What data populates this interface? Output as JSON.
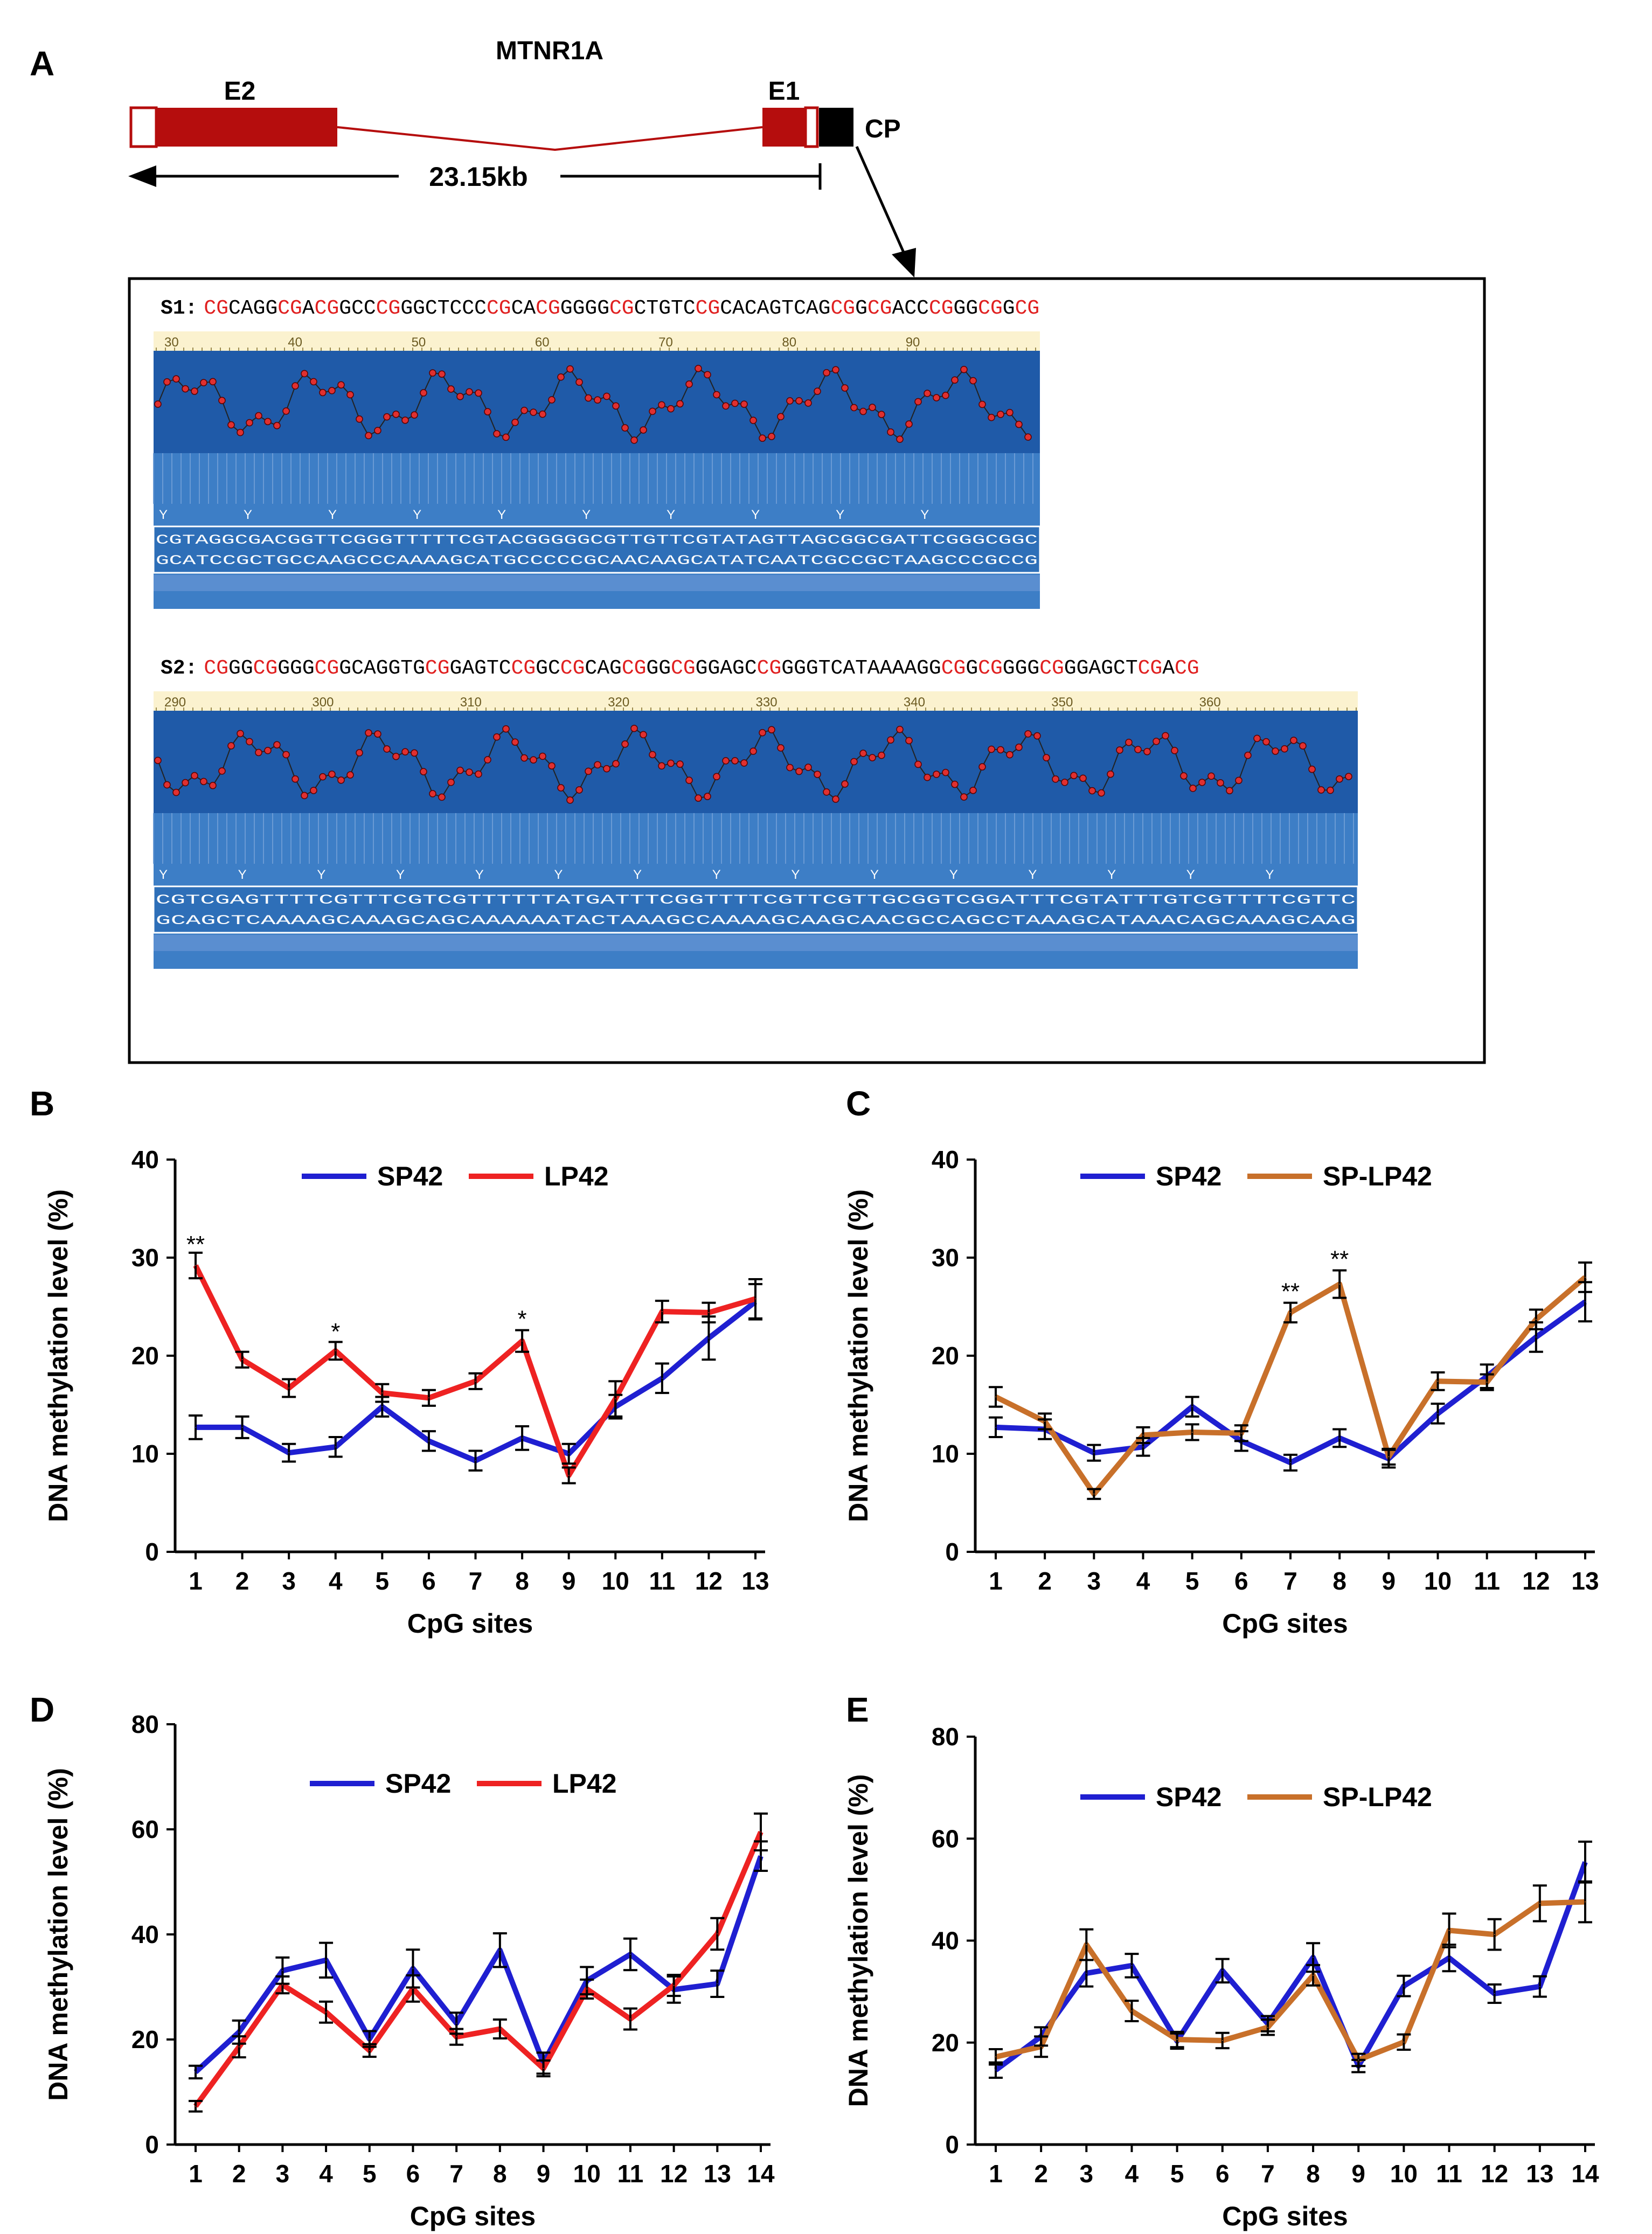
{
  "panel_a": {
    "label": "A",
    "gene": "MTNR1A",
    "exon2": "E2",
    "exon1": "E1",
    "promoter": "CP",
    "distance": "23.15kb",
    "s1_prefix": "S1:",
    "s1_sequence": "CGCAGGCGACGGCCCGGGCTCCCCGCACGGGGGCGCTGTCCGCACAGTCAGCGGCGACCCGGGCGGCG",
    "s1_ruler": [
      "30",
      "40",
      "50",
      "60",
      "70",
      "80",
      "90"
    ],
    "s1_bisulfite_top": "CGTAGGCGACGGTTCGGGTTTTTCGTACGGGGGCGTTGTTCGTATAGTTAGCGGCGATTCGGGCGGC",
    "s1_bisulfite_bottom": "GCATCCGCTGCCAAGCCCAAAAGCATGCCCCCGCAACAAGCATATCAATCGCCGCTAAGCCCGCCG",
    "s1_y_marks": [
      "Y",
      "Y",
      "Y",
      "Y",
      "Y",
      "Y",
      "Y",
      "Y",
      "Y",
      "Y"
    ],
    "s2_prefix": "S2:",
    "s2_sequence": "CGGGCGGGGCGGCAGGTGCGGAGTCCGGCCGCAGCGGGCGGGAGCCGGGGTCATAAAAGGCGGCGGGGCGGGAGCTCGACG",
    "s2_ruler": [
      "290",
      "300",
      "310",
      "320",
      "330",
      "340",
      "350",
      "360"
    ],
    "s2_bisulfite_top": "CGTCGAGTTTTCGTTTCGTCGTTTTTTATGATTTCGGTTTTCGTTCGTTGCGGTCGGATTTCGTATTTGTCGTTTTCGTTC",
    "s2_bisulfite_bottom": "GCAGCTCAAAAGCAAAGCAGCAAAAAATACTAAAGCCAAAAGCAAGCAACGCCAGCCTAAAGCATAAACAGCAAAGCAAG",
    "s2_y_marks": [
      "Y",
      "Y",
      "Y",
      "Y",
      "Y",
      "Y",
      "Y",
      "Y",
      "Y",
      "Y",
      "Y",
      "Y",
      "Y",
      "Y",
      "Y"
    ]
  },
  "colors": {
    "sp42": "#1f1fd1",
    "lp42": "#ee2222",
    "splp42": "#c8702a",
    "exon": "#b50d0d",
    "cpg_red": "#e02020",
    "trace_bg": "#3d7ec6",
    "trace_dark": "#1f5aa8",
    "ruler_bg": "#fbf2cf"
  },
  "chart_data": [
    {
      "id": "B",
      "type": "line",
      "xlabel": "CpG sites",
      "ylabel": "DNA methylation level  (%)",
      "ylim": [
        0,
        40
      ],
      "yticks": [
        "0",
        "10",
        "20",
        "30",
        "40"
      ],
      "categories": [
        "1",
        "2",
        "3",
        "4",
        "5",
        "6",
        "7",
        "8",
        "9",
        "10",
        "11",
        "12",
        "13"
      ],
      "series": [
        {
          "name": "SP42",
          "color": "#1f1fd1",
          "values": [
            12.7,
            12.7,
            10.1,
            10.7,
            14.8,
            11.3,
            9.3,
            11.6,
            10.0,
            14.8,
            17.7,
            21.8,
            25.5
          ],
          "errors": [
            1.2,
            1.1,
            0.9,
            1.0,
            1.0,
            1.0,
            1.0,
            1.2,
            1.0,
            1.2,
            1.5,
            2.2,
            1.8
          ]
        },
        {
          "name": "LP42",
          "color": "#ee2222",
          "values": [
            29.2,
            19.6,
            16.7,
            20.5,
            16.2,
            15.7,
            17.4,
            21.5,
            7.8,
            15.6,
            24.5,
            24.4,
            25.8
          ],
          "errors": [
            1.3,
            0.8,
            0.9,
            0.9,
            0.9,
            0.8,
            0.8,
            1.1,
            0.8,
            1.8,
            1.1,
            1.0,
            2.0
          ]
        }
      ],
      "annotations": [
        {
          "x": "1",
          "label": "**",
          "y": 31.2
        },
        {
          "x": "4",
          "label": "*",
          "y": 22.3
        },
        {
          "x": "8",
          "label": "*",
          "y": 23.6
        }
      ]
    },
    {
      "id": "C",
      "type": "line",
      "xlabel": "CpG sites",
      "ylabel": "DNA methylation level  (%)",
      "ylim": [
        0,
        40
      ],
      "yticks": [
        "0",
        "10",
        "20",
        "30",
        "40"
      ],
      "categories": [
        "1",
        "2",
        "3",
        "4",
        "5",
        "6",
        "7",
        "8",
        "9",
        "10",
        "11",
        "12",
        "13"
      ],
      "series": [
        {
          "name": "SP42",
          "color": "#1f1fd1",
          "values": [
            12.7,
            12.5,
            10.1,
            10.7,
            14.8,
            11.3,
            9.1,
            11.6,
            9.5,
            14.1,
            17.9,
            21.9,
            25.5
          ],
          "errors": [
            1.0,
            1.0,
            0.8,
            0.9,
            1.0,
            1.0,
            0.8,
            0.9,
            0.9,
            1.0,
            1.2,
            1.5,
            2.0
          ]
        },
        {
          "name": "SP-LP42",
          "color": "#c8702a",
          "values": [
            15.8,
            13.3,
            5.9,
            11.9,
            12.2,
            12.1,
            24.4,
            27.3,
            9.7,
            17.4,
            17.3,
            23.7,
            28.0
          ],
          "errors": [
            1.0,
            0.8,
            0.5,
            0.8,
            0.8,
            0.8,
            1.0,
            1.4,
            0.8,
            0.9,
            0.8,
            1.0,
            1.5
          ]
        }
      ],
      "annotations": [
        {
          "x": "7",
          "label": "**",
          "y": 26.4
        },
        {
          "x": "8",
          "label": "**",
          "y": 29.7
        }
      ]
    },
    {
      "id": "D",
      "type": "line",
      "xlabel": "CpG sites",
      "ylabel": "DNA methylation level  (%)",
      "ylim": [
        0,
        80
      ],
      "yticks": [
        "0",
        "20",
        "40",
        "60",
        "80"
      ],
      "categories": [
        "1",
        "2",
        "3",
        "4",
        "5",
        "6",
        "7",
        "8",
        "9",
        "10",
        "11",
        "12",
        "13",
        "14"
      ],
      "series": [
        {
          "name": "SP42",
          "color": "#1f1fd1",
          "values": [
            13.8,
            21.4,
            33.1,
            35.1,
            20.1,
            33.5,
            23.1,
            37.0,
            15.5,
            31.2,
            36.2,
            29.5,
            30.6,
            54.9
          ],
          "errors": [
            1.2,
            2.2,
            2.5,
            3.3,
            1.5,
            3.6,
            2.0,
            3.2,
            2.0,
            2.6,
            3.0,
            2.5,
            2.5,
            2.8
          ]
        },
        {
          "name": "LP42",
          "color": "#ee2222",
          "values": [
            7.3,
            18.6,
            30.4,
            25.2,
            17.9,
            29.7,
            20.5,
            22.0,
            14.5,
            29.6,
            23.9,
            30.3,
            40.1,
            59.5
          ],
          "errors": [
            1.0,
            2.0,
            1.6,
            2.0,
            1.2,
            2.5,
            1.5,
            1.8,
            1.5,
            1.8,
            2.0,
            2.0,
            3.0,
            3.5
          ]
        }
      ]
    },
    {
      "id": "E",
      "type": "line",
      "xlabel": "CpG sites",
      "ylabel": "DNA methylation level  (%)",
      "ylim": [
        0,
        80
      ],
      "yticks": [
        "0",
        "20",
        "40",
        "60",
        "80"
      ],
      "categories": [
        "1",
        "2",
        "3",
        "4",
        "5",
        "6",
        "7",
        "8",
        "9",
        "10",
        "11",
        "12",
        "13",
        "14"
      ],
      "series": [
        {
          "name": "SP42",
          "color": "#1f1fd1",
          "values": [
            14.6,
            21.2,
            33.6,
            35.1,
            20.3,
            34.1,
            23.7,
            36.7,
            15.4,
            31.1,
            36.6,
            29.6,
            31.0,
            55.4
          ],
          "errors": [
            1.5,
            1.8,
            2.6,
            2.3,
            1.5,
            2.3,
            1.5,
            2.8,
            1.2,
            2.0,
            2.6,
            1.8,
            2.0,
            4.0
          ]
        },
        {
          "name": "SP-LP42",
          "color": "#c8702a",
          "values": [
            17.2,
            19.2,
            39.2,
            26.2,
            20.6,
            20.4,
            23.0,
            33.2,
            16.6,
            20.1,
            42.0,
            41.2,
            47.3,
            47.6
          ],
          "errors": [
            1.5,
            2.0,
            3.0,
            2.0,
            1.5,
            1.5,
            1.5,
            2.0,
            1.2,
            1.5,
            3.3,
            3.0,
            3.5,
            4.0
          ]
        }
      ]
    }
  ]
}
